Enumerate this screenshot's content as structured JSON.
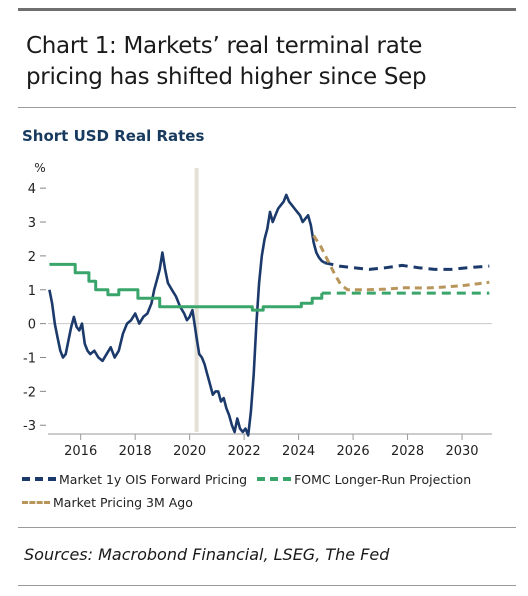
{
  "header": {
    "title_line1": "Chart 1: Markets’ real terminal rate",
    "title_line2": "pricing has shifted higher since Sep"
  },
  "chart_data": {
    "type": "line",
    "subtitle": "Short USD Real Rates",
    "ylabel": "%",
    "xlim": [
      2014.8,
      2031.1
    ],
    "ylim": [
      -3.2,
      4.3
    ],
    "x_ticks": [
      "2016",
      "2018",
      "2020",
      "2022",
      "2024",
      "2026",
      "2028",
      "2030"
    ],
    "y_ticks": [
      "4",
      "3",
      "2",
      "1",
      "0",
      "-1",
      "-2",
      "-3"
    ],
    "shaded_band": [
      2020.18,
      2020.33
    ],
    "legend_position": "bottom",
    "series": [
      {
        "name": "Market 1y OIS Forward Pricing",
        "color": "#1b3a6b",
        "style": "solid",
        "points": [
          [
            2014.85,
            1.0
          ],
          [
            2014.95,
            0.6
          ],
          [
            2015.05,
            0.0
          ],
          [
            2015.15,
            -0.4
          ],
          [
            2015.25,
            -0.8
          ],
          [
            2015.35,
            -1.0
          ],
          [
            2015.45,
            -0.9
          ],
          [
            2015.55,
            -0.5
          ],
          [
            2015.65,
            -0.1
          ],
          [
            2015.75,
            0.2
          ],
          [
            2015.85,
            -0.1
          ],
          [
            2015.95,
            -0.2
          ],
          [
            2016.05,
            0.0
          ],
          [
            2016.15,
            -0.6
          ],
          [
            2016.25,
            -0.8
          ],
          [
            2016.35,
            -0.9
          ],
          [
            2016.5,
            -0.8
          ],
          [
            2016.65,
            -1.0
          ],
          [
            2016.8,
            -1.1
          ],
          [
            2016.95,
            -0.9
          ],
          [
            2017.1,
            -0.7
          ],
          [
            2017.25,
            -1.0
          ],
          [
            2017.4,
            -0.8
          ],
          [
            2017.55,
            -0.3
          ],
          [
            2017.7,
            0.0
          ],
          [
            2017.85,
            0.1
          ],
          [
            2018.0,
            0.3
          ],
          [
            2018.15,
            0.0
          ],
          [
            2018.3,
            0.2
          ],
          [
            2018.45,
            0.3
          ],
          [
            2018.6,
            0.6
          ],
          [
            2018.7,
            1.0
          ],
          [
            2018.8,
            1.3
          ],
          [
            2018.9,
            1.6
          ],
          [
            2019.0,
            2.1
          ],
          [
            2019.1,
            1.6
          ],
          [
            2019.2,
            1.2
          ],
          [
            2019.35,
            1.0
          ],
          [
            2019.5,
            0.8
          ],
          [
            2019.65,
            0.5
          ],
          [
            2019.8,
            0.3
          ],
          [
            2019.9,
            0.1
          ],
          [
            2020.0,
            0.2
          ],
          [
            2020.1,
            0.4
          ],
          [
            2020.18,
            0.0
          ],
          [
            2020.25,
            -0.4
          ],
          [
            2020.35,
            -0.9
          ],
          [
            2020.45,
            -1.0
          ],
          [
            2020.55,
            -1.2
          ],
          [
            2020.65,
            -1.5
          ],
          [
            2020.75,
            -1.8
          ],
          [
            2020.85,
            -2.1
          ],
          [
            2020.95,
            -2.0
          ],
          [
            2021.05,
            -2.0
          ],
          [
            2021.15,
            -2.3
          ],
          [
            2021.25,
            -2.2
          ],
          [
            2021.35,
            -2.5
          ],
          [
            2021.45,
            -2.7
          ],
          [
            2021.55,
            -3.0
          ],
          [
            2021.65,
            -3.2
          ],
          [
            2021.75,
            -2.8
          ],
          [
            2021.85,
            -3.1
          ],
          [
            2021.95,
            -3.2
          ],
          [
            2022.05,
            -3.1
          ],
          [
            2022.15,
            -3.3
          ],
          [
            2022.25,
            -2.6
          ],
          [
            2022.35,
            -1.5
          ],
          [
            2022.45,
            0.0
          ],
          [
            2022.55,
            1.2
          ],
          [
            2022.65,
            2.0
          ],
          [
            2022.75,
            2.5
          ],
          [
            2022.85,
            2.8
          ],
          [
            2022.95,
            3.3
          ],
          [
            2023.05,
            3.0
          ],
          [
            2023.15,
            3.2
          ],
          [
            2023.25,
            3.4
          ],
          [
            2023.35,
            3.5
          ],
          [
            2023.45,
            3.6
          ],
          [
            2023.55,
            3.8
          ],
          [
            2023.65,
            3.6
          ],
          [
            2023.75,
            3.5
          ],
          [
            2023.85,
            3.4
          ],
          [
            2023.95,
            3.3
          ],
          [
            2024.05,
            3.2
          ],
          [
            2024.15,
            3.0
          ],
          [
            2024.25,
            3.1
          ],
          [
            2024.35,
            3.2
          ],
          [
            2024.45,
            2.9
          ],
          [
            2024.55,
            2.4
          ],
          [
            2024.65,
            2.1
          ],
          [
            2024.75,
            1.95
          ],
          [
            2024.85,
            1.85
          ],
          [
            2024.95,
            1.8
          ]
        ]
      },
      {
        "name": "Market 1y OIS Forward Pricing",
        "color": "#1b3a6b",
        "style": "dashed",
        "points": [
          [
            2024.95,
            1.8
          ],
          [
            2025.5,
            1.7
          ],
          [
            2026.0,
            1.65
          ],
          [
            2026.6,
            1.6
          ],
          [
            2027.2,
            1.65
          ],
          [
            2027.8,
            1.72
          ],
          [
            2028.4,
            1.65
          ],
          [
            2029.0,
            1.6
          ],
          [
            2029.6,
            1.6
          ],
          [
            2030.2,
            1.65
          ],
          [
            2031.0,
            1.7
          ]
        ]
      },
      {
        "name": "FOMC Longer-Run Projection",
        "color": "#3aa56a",
        "style": "solid",
        "points": [
          [
            2014.85,
            1.75
          ],
          [
            2015.8,
            1.75
          ],
          [
            2015.8,
            1.5
          ],
          [
            2016.3,
            1.5
          ],
          [
            2016.3,
            1.25
          ],
          [
            2016.55,
            1.25
          ],
          [
            2016.55,
            1.0
          ],
          [
            2017.0,
            1.0
          ],
          [
            2017.0,
            0.85
          ],
          [
            2017.4,
            0.85
          ],
          [
            2017.4,
            1.0
          ],
          [
            2018.1,
            1.0
          ],
          [
            2018.1,
            0.75
          ],
          [
            2018.9,
            0.75
          ],
          [
            2018.9,
            0.5
          ],
          [
            2022.3,
            0.5
          ],
          [
            2022.3,
            0.4
          ],
          [
            2022.7,
            0.4
          ],
          [
            2022.7,
            0.5
          ],
          [
            2024.1,
            0.5
          ],
          [
            2024.1,
            0.6
          ],
          [
            2024.5,
            0.6
          ],
          [
            2024.5,
            0.75
          ],
          [
            2024.85,
            0.75
          ],
          [
            2024.85,
            0.9
          ]
        ]
      },
      {
        "name": "FOMC Longer-Run Projection",
        "color": "#3aa56a",
        "style": "dashed",
        "points": [
          [
            2024.85,
            0.9
          ],
          [
            2031.0,
            0.9
          ]
        ]
      },
      {
        "name": "Market Pricing 3M Ago",
        "color": "#b8955a",
        "style": "dashed",
        "points": [
          [
            2024.55,
            2.6
          ],
          [
            2024.8,
            2.3
          ],
          [
            2025.05,
            1.9
          ],
          [
            2025.3,
            1.5
          ],
          [
            2025.55,
            1.15
          ],
          [
            2025.8,
            1.0
          ],
          [
            2026.5,
            1.0
          ],
          [
            2027.2,
            1.02
          ],
          [
            2027.9,
            1.06
          ],
          [
            2028.6,
            1.05
          ],
          [
            2029.3,
            1.08
          ],
          [
            2030.0,
            1.12
          ],
          [
            2030.6,
            1.18
          ],
          [
            2031.0,
            1.22
          ]
        ]
      }
    ]
  },
  "legend": {
    "items": [
      {
        "label": "Market 1y OIS Forward Pricing",
        "color": "#1b3a6b"
      },
      {
        "label": "FOMC Longer-Run Projection",
        "color": "#3aa56a"
      },
      {
        "label": "Market Pricing 3M Ago",
        "color": "#b8955a"
      }
    ]
  },
  "footer": {
    "sources": "Sources: Macrobond Financial, LSEG, The Fed"
  }
}
